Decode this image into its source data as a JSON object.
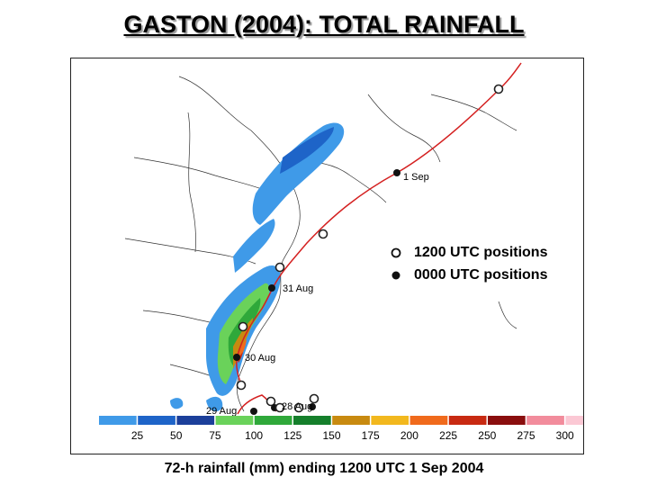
{
  "title": "GASTON (2004):  TOTAL RAINFALL",
  "caption": "72-h rainfall (mm) ending 1200 UTC 1 Sep 2004",
  "legend": {
    "items": [
      {
        "label": "1200 UTC positions",
        "symbol": "open-circle-icon"
      },
      {
        "label": "0000 UTC positions",
        "symbol": "filled-circle-icon"
      }
    ]
  },
  "track": {
    "color": "#d42020",
    "date_labels": [
      "1 Sep",
      "31 Aug",
      "30 Aug",
      "29 Aug",
      "28 Aug"
    ]
  },
  "color_scale": {
    "ticks": [
      "25",
      "50",
      "75",
      "100",
      "125",
      "150",
      "175",
      "200",
      "225",
      "250",
      "275",
      "300"
    ],
    "colors": [
      "#3f9ae8",
      "#1e64c8",
      "#1c3f9a",
      "#6ad25a",
      "#2fa83a",
      "#157f2b",
      "#c88a10",
      "#f2b81e",
      "#f06a1c",
      "#c82a12",
      "#8a0e0e",
      "#f28c9c",
      "#fbc8d4"
    ]
  }
}
